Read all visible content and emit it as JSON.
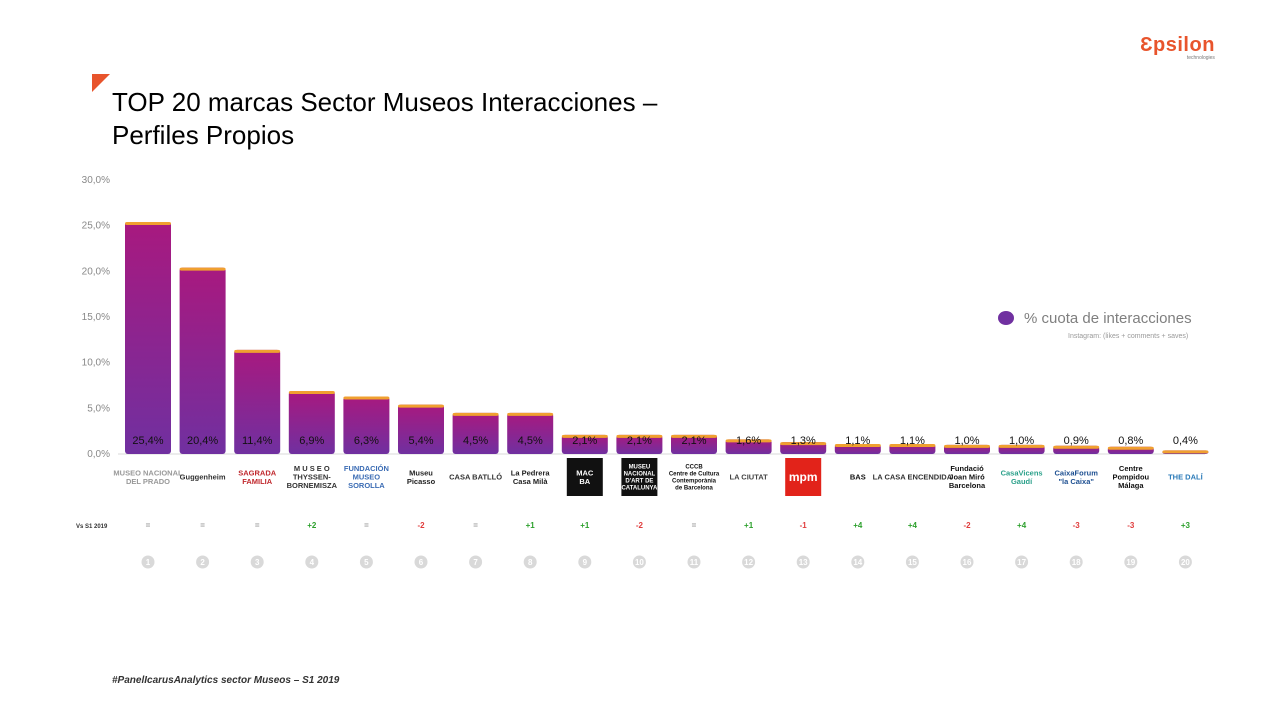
{
  "brand": {
    "name": "Ɛpsilon",
    "tagline": "technologies"
  },
  "title_line1": "TOP 20 marcas Sector Museos Interacciones –",
  "title_line2": "Perfiles Propios",
  "legend": {
    "label": "% cuota de interacciones",
    "note": "Instagram: (likes + comments + saves)"
  },
  "footer": "#PanelIcarusAnalytics  sector Museos – S1 2019",
  "row_label": "Vs S1 2019",
  "colors": {
    "bar_top": "#a8197f",
    "bar_bottom": "#7030a0",
    "bar_cap": "#f0a030",
    "accent": "#e8542c",
    "positive": "#2ca02c",
    "negative": "#e03c3c",
    "neutral": "#999999"
  },
  "chart_data": {
    "type": "bar",
    "ylim": [
      0,
      30
    ],
    "yticks": [
      "0,0%",
      "5,0%",
      "10,0%",
      "15,0%",
      "20,0%",
      "25,0%",
      "30,0%"
    ],
    "grid": false,
    "legend_position": "right",
    "values": [
      25.4,
      20.4,
      11.4,
      6.9,
      6.3,
      5.4,
      4.5,
      4.5,
      2.1,
      2.1,
      2.1,
      1.6,
      1.3,
      1.1,
      1.1,
      1.0,
      1.0,
      0.9,
      0.8,
      0.4
    ],
    "value_labels": [
      "25,4%",
      "20,4%",
      "11,4%",
      "6,9%",
      "6,3%",
      "5,4%",
      "4,5%",
      "4,5%",
      "2,1%",
      "2,1%",
      "2,1%",
      "1,6%",
      "1,3%",
      "1,1%",
      "1,1%",
      "1,0%",
      "1,0%",
      "0,9%",
      "0,8%",
      "0,4%"
    ],
    "changes": [
      "=",
      "=",
      "=",
      "+2",
      "=",
      "-2",
      "=",
      "+1",
      "+1",
      "-2",
      "=",
      "+1",
      "-1",
      "+4",
      "+4",
      "-2",
      "+4",
      "-3",
      "-3",
      "+3"
    ],
    "ranks": [
      "1",
      "2",
      "3",
      "4",
      "5",
      "6",
      "7",
      "8",
      "9",
      "10",
      "11",
      "12",
      "13",
      "14",
      "15",
      "16",
      "17",
      "18",
      "19",
      "20"
    ],
    "logos": [
      {
        "icon": "museo-prado-logo",
        "lines": [
          "MUSEO NACIONAL",
          "DEL PRADO"
        ],
        "color": "#999999",
        "bg": "none"
      },
      {
        "icon": "guggenheim-logo",
        "lines": [
          "Guggenheim"
        ],
        "color": "#333333",
        "bg": "none"
      },
      {
        "icon": "sagrada-familia-logo",
        "lines": [
          "SAGRADA",
          "FAMILIA"
        ],
        "color": "#c0282d",
        "bg": "none"
      },
      {
        "icon": "thyssen-logo",
        "lines": [
          "M U S E O",
          "THYSSEN-",
          "BORNEMISZA"
        ],
        "color": "#333333",
        "bg": "none"
      },
      {
        "icon": "museo-sorolla-logo",
        "lines": [
          "FUNDACIÓN",
          "MUSEO",
          "SOROLLA"
        ],
        "color": "#3b6cb4",
        "bg": "none"
      },
      {
        "icon": "museu-picasso-logo",
        "lines": [
          "Museu",
          "Picasso"
        ],
        "color": "#222222",
        "bg": "none"
      },
      {
        "icon": "casa-batllo-logo",
        "lines": [
          "CASA BATLLÓ"
        ],
        "color": "#333333",
        "bg": "none"
      },
      {
        "icon": "la-pedrera-logo",
        "lines": [
          "La Pedrera",
          "Casa Milà"
        ],
        "color": "#222222",
        "bg": "none"
      },
      {
        "icon": "macba-logo",
        "lines": [
          "MAC",
          "BA"
        ],
        "color": "#ffffff",
        "bg": "#111111"
      },
      {
        "icon": "mnac-logo",
        "lines": [
          "MUSEU",
          "NACIONAL",
          "D'ART DE",
          "CATALUNYA"
        ],
        "color": "#ffffff",
        "bg": "#111111"
      },
      {
        "icon": "cccb-logo",
        "lines": [
          "CCCB",
          "Centre de Cultura",
          "Contemporània",
          "de Barcelona"
        ],
        "color": "#111111",
        "bg": "none"
      },
      {
        "icon": "la-ciutat-logo",
        "lines": [
          "LA CIUTAT"
        ],
        "color": "#444444",
        "bg": "none"
      },
      {
        "icon": "mpm-logo",
        "lines": [
          "mpm"
        ],
        "color": "#ffffff",
        "bg": "#e2231a"
      },
      {
        "icon": "bas-logo",
        "lines": [
          "BAS"
        ],
        "color": "#111111",
        "bg": "none"
      },
      {
        "icon": "la-casa-encendida-logo",
        "lines": [
          "LA CASA ENCENDIDA"
        ],
        "color": "#333333",
        "bg": "none"
      },
      {
        "icon": "fundacio-joan-miro-logo",
        "lines": [
          "Fundació",
          "Joan Miró",
          "Barcelona"
        ],
        "color": "#111111",
        "bg": "none"
      },
      {
        "icon": "casa-vicens-logo",
        "lines": [
          "CasaVicens",
          "Gaudí"
        ],
        "color": "#2aa08a",
        "bg": "none"
      },
      {
        "icon": "caixaforum-logo",
        "lines": [
          "CaixaForum",
          "\"la Caixa\""
        ],
        "color": "#1d4f91",
        "bg": "none"
      },
      {
        "icon": "centre-pompidou-logo",
        "lines": [
          "Centre",
          "Pompidou",
          "Málaga"
        ],
        "color": "#111111",
        "bg": "none"
      },
      {
        "icon": "dali-museum-logo",
        "lines": [
          "THE DALÍ"
        ],
        "color": "#2a7ab8",
        "bg": "none"
      }
    ]
  }
}
